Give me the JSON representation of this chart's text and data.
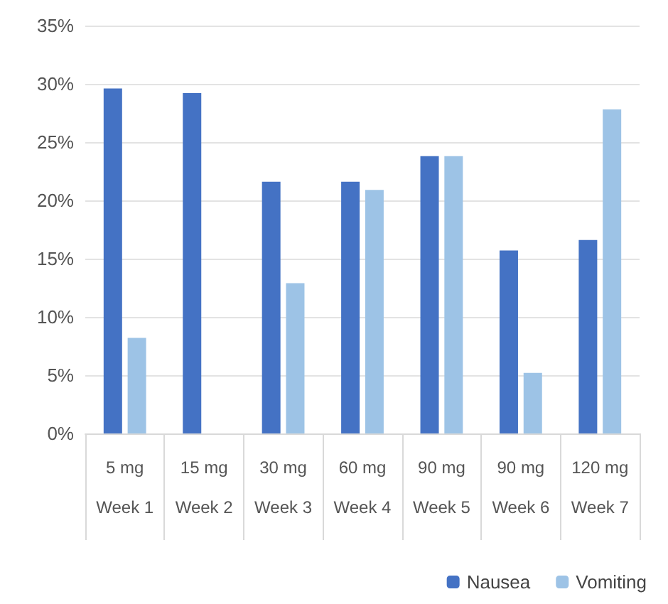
{
  "chart_data": {
    "type": "bar",
    "categories": [
      "5 mg\nWeek 1",
      "15 mg\nWeek 2",
      "30 mg\nWeek 3",
      "60 mg\nWeek 4",
      "90 mg\nWeek 5",
      "90 mg\nWeek 6",
      "120 mg\nWeek 7"
    ],
    "series": [
      {
        "name": "Nausea",
        "color": "#4472c4",
        "values": [
          29.6,
          29.2,
          21.6,
          21.6,
          23.8,
          15.7,
          16.6
        ]
      },
      {
        "name": "Vomiting",
        "color": "#9dc3e6",
        "values": [
          8.2,
          null,
          12.9,
          20.9,
          23.8,
          5.2,
          27.8
        ]
      }
    ],
    "ylim": [
      0,
      35
    ],
    "yticks": [
      {
        "value": 0,
        "label": "0%"
      },
      {
        "value": 5,
        "label": "5%"
      },
      {
        "value": 10,
        "label": "10%"
      },
      {
        "value": 15,
        "label": "15%"
      },
      {
        "value": 20,
        "label": "20%"
      },
      {
        "value": 25,
        "label": "25%"
      },
      {
        "value": 30,
        "label": "30%"
      },
      {
        "value": 35,
        "label": "35%"
      }
    ],
    "grid": "y",
    "legend": "bottom right"
  }
}
